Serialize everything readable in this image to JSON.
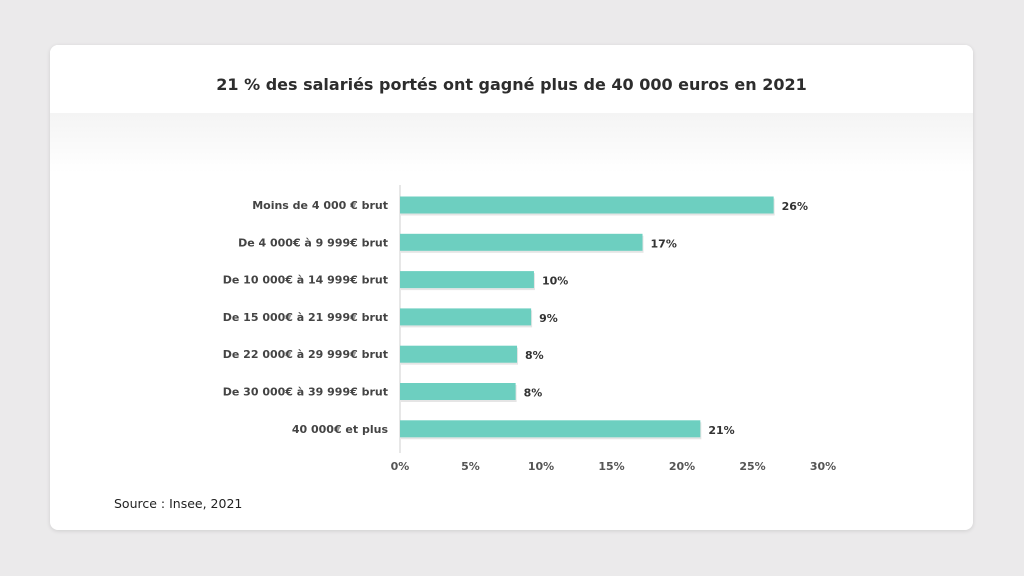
{
  "chart_data": {
    "type": "bar",
    "orientation": "horizontal",
    "title": "21 % des salariés portés ont gagné plus de 40 000 euros en 2021",
    "categories": [
      "Moins de 4 000 € brut",
      "De 4 000€ à 9 999€ brut",
      "De 10 000€ à 14 999€ brut",
      "De 15 000€ à 21 999€ brut",
      "De 22 000€ à 29 999€ brut",
      "De 30 000€ à 39 999€ brut",
      "40 000€ et plus"
    ],
    "values": [
      26.5,
      17.2,
      9.5,
      9.3,
      8.3,
      8.2,
      21.3
    ],
    "value_labels": [
      "26%",
      "17%",
      "10%",
      "9%",
      "8%",
      "8%",
      "21%"
    ],
    "xlim": [
      0,
      30
    ],
    "xticks": [
      0,
      5,
      10,
      15,
      20,
      25,
      30
    ],
    "xtick_labels": [
      "0%",
      "5%",
      "10%",
      "15%",
      "20%",
      "25%",
      "30%"
    ],
    "bar_color": "#6dcfc0",
    "grid": false,
    "source": "Source : Insee, 2021"
  }
}
